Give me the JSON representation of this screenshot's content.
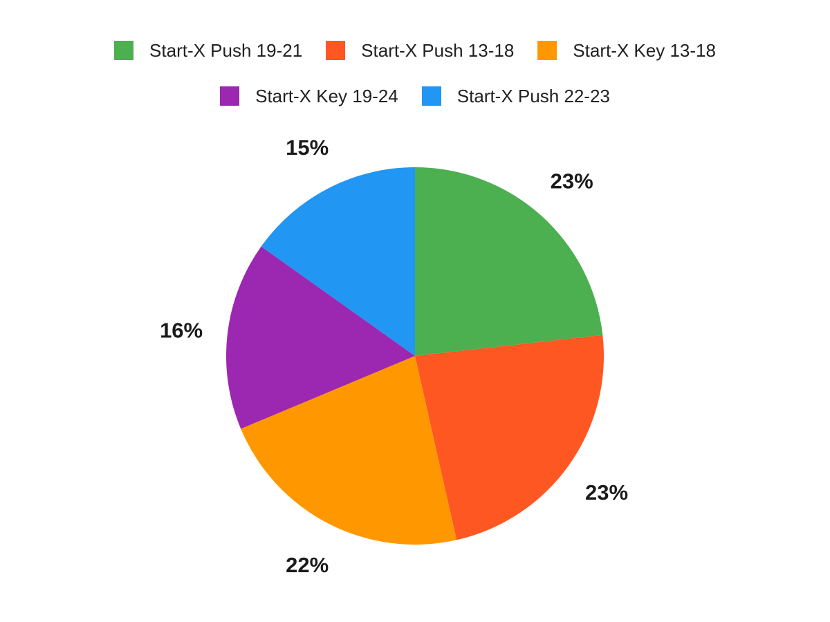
{
  "chart_data": {
    "type": "pie",
    "title": "",
    "labels": [
      "Start-X Push 19-21",
      "Start-X Push 13-18",
      "Start-X Key 13-18",
      "Start-X Key 19-24",
      "Start-X Push 22-23"
    ],
    "values": [
      23,
      23,
      22,
      16,
      15
    ],
    "percent_labels": [
      "23%",
      "23%",
      "22%",
      "16%",
      "15%"
    ],
    "colors": [
      "#4CAF50",
      "#FF5722",
      "#FF9800",
      "#9C27B0",
      "#2196F3"
    ],
    "unit": "%",
    "start_angle_deg": 0,
    "direction": "clockwise",
    "legend_position": "top",
    "legend_rows": [
      3,
      2
    ],
    "background_color": "#ffffff",
    "label_color": "#1a1a1a",
    "legend_text_color": "#212121"
  }
}
